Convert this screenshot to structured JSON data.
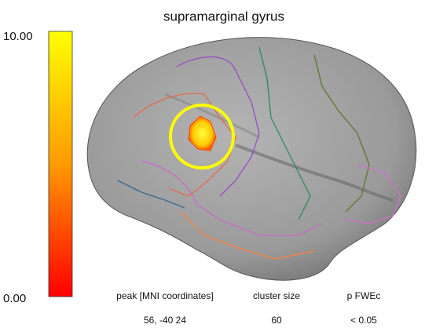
{
  "title": "supramarginal gyrus",
  "colorbar": {
    "max_label": "10.00",
    "min_label": "0.00"
  },
  "table": {
    "headers": [
      "peak [MNI coordinates]",
      "cluster size",
      "p FWEc"
    ],
    "rows": [
      [
        "56, -40 24",
        "60",
        "< 0.05"
      ]
    ]
  }
}
